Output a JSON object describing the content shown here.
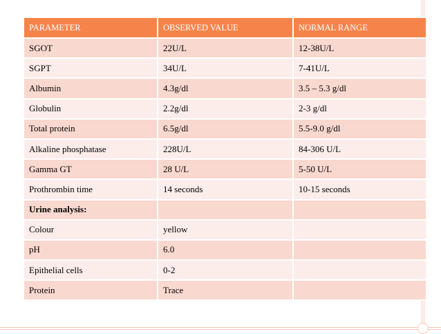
{
  "table": {
    "headers": [
      "PARAMETER",
      "OBSERVED VALUE",
      "NORMAL RANGE"
    ],
    "rows": [
      {
        "parameter": "SGOT",
        "observed": "22U/L",
        "normal": "12-38U/L"
      },
      {
        "parameter": "SGPT",
        "observed": "34U/L",
        "normal": "7-41U/L"
      },
      {
        "parameter": "Albumin",
        "observed": "4.3g/dl",
        "normal": "3.5 – 5.3 g/dl"
      },
      {
        "parameter": "Globulin",
        "observed": "2.2g/dl",
        "normal": "2-3 g/dl"
      },
      {
        "parameter": "Total protein",
        "observed": "6.5g/dl",
        "normal": "5.5-9.0 g/dl"
      },
      {
        "parameter": "Alkaline phosphatase",
        "observed": "228U/L",
        "normal": "84-306 U/L"
      },
      {
        "parameter": "Gamma GT",
        "observed": "28 U/L",
        "normal": "5-50 U/L"
      },
      {
        "parameter": "Prothrombin time",
        "observed": "14 seconds",
        "normal": "10-15 seconds"
      },
      {
        "parameter": "Urine analysis:",
        "observed": "",
        "normal": ""
      },
      {
        "parameter": "Colour",
        "observed": "yellow",
        "normal": ""
      },
      {
        "parameter": "pH",
        "observed": "6.0",
        "normal": ""
      },
      {
        "parameter": "Epithelial cells",
        "observed": "0-2",
        "normal": ""
      },
      {
        "parameter": "Protein",
        "observed": "Trace",
        "normal": ""
      }
    ]
  },
  "colors": {
    "header_bg": "#f6844a",
    "row_dark": "#f9d8cf",
    "row_light": "#fcedea",
    "frame": "#f3c9b4"
  }
}
